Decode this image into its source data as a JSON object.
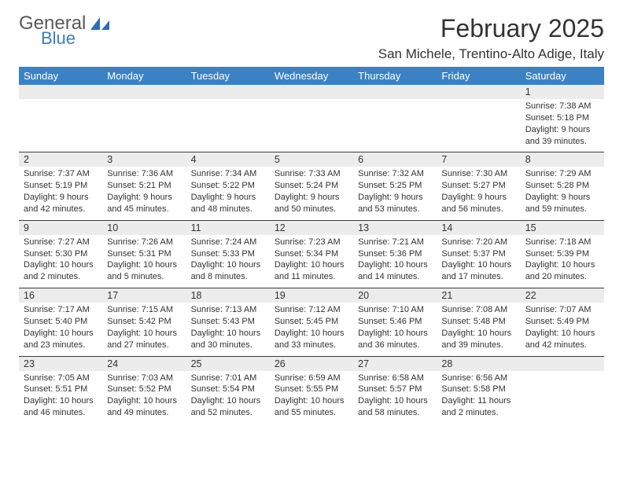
{
  "logo": {
    "text1": "General",
    "text2": "Blue",
    "text1_color": "#5a5a5a",
    "text2_color": "#3b7fbf",
    "icon_fill": "#2f6db3"
  },
  "title": "February 2025",
  "location": "San Michele, Trentino-Alto Adige, Italy",
  "colors": {
    "header_bg": "#3b82c4",
    "header_text": "#ffffff",
    "daynum_bg": "#ececec",
    "sep_line": "#3b3b3b",
    "body_text": "#333333"
  },
  "day_headers": [
    "Sunday",
    "Monday",
    "Tuesday",
    "Wednesday",
    "Thursday",
    "Friday",
    "Saturday"
  ],
  "weeks": [
    [
      null,
      null,
      null,
      null,
      null,
      null,
      {
        "n": "1",
        "sunrise": "7:38 AM",
        "sunset": "5:18 PM",
        "daylight": "9 hours and 39 minutes."
      }
    ],
    [
      {
        "n": "2",
        "sunrise": "7:37 AM",
        "sunset": "5:19 PM",
        "daylight": "9 hours and 42 minutes."
      },
      {
        "n": "3",
        "sunrise": "7:36 AM",
        "sunset": "5:21 PM",
        "daylight": "9 hours and 45 minutes."
      },
      {
        "n": "4",
        "sunrise": "7:34 AM",
        "sunset": "5:22 PM",
        "daylight": "9 hours and 48 minutes."
      },
      {
        "n": "5",
        "sunrise": "7:33 AM",
        "sunset": "5:24 PM",
        "daylight": "9 hours and 50 minutes."
      },
      {
        "n": "6",
        "sunrise": "7:32 AM",
        "sunset": "5:25 PM",
        "daylight": "9 hours and 53 minutes."
      },
      {
        "n": "7",
        "sunrise": "7:30 AM",
        "sunset": "5:27 PM",
        "daylight": "9 hours and 56 minutes."
      },
      {
        "n": "8",
        "sunrise": "7:29 AM",
        "sunset": "5:28 PM",
        "daylight": "9 hours and 59 minutes."
      }
    ],
    [
      {
        "n": "9",
        "sunrise": "7:27 AM",
        "sunset": "5:30 PM",
        "daylight": "10 hours and 2 minutes."
      },
      {
        "n": "10",
        "sunrise": "7:26 AM",
        "sunset": "5:31 PM",
        "daylight": "10 hours and 5 minutes."
      },
      {
        "n": "11",
        "sunrise": "7:24 AM",
        "sunset": "5:33 PM",
        "daylight": "10 hours and 8 minutes."
      },
      {
        "n": "12",
        "sunrise": "7:23 AM",
        "sunset": "5:34 PM",
        "daylight": "10 hours and 11 minutes."
      },
      {
        "n": "13",
        "sunrise": "7:21 AM",
        "sunset": "5:36 PM",
        "daylight": "10 hours and 14 minutes."
      },
      {
        "n": "14",
        "sunrise": "7:20 AM",
        "sunset": "5:37 PM",
        "daylight": "10 hours and 17 minutes."
      },
      {
        "n": "15",
        "sunrise": "7:18 AM",
        "sunset": "5:39 PM",
        "daylight": "10 hours and 20 minutes."
      }
    ],
    [
      {
        "n": "16",
        "sunrise": "7:17 AM",
        "sunset": "5:40 PM",
        "daylight": "10 hours and 23 minutes."
      },
      {
        "n": "17",
        "sunrise": "7:15 AM",
        "sunset": "5:42 PM",
        "daylight": "10 hours and 27 minutes."
      },
      {
        "n": "18",
        "sunrise": "7:13 AM",
        "sunset": "5:43 PM",
        "daylight": "10 hours and 30 minutes."
      },
      {
        "n": "19",
        "sunrise": "7:12 AM",
        "sunset": "5:45 PM",
        "daylight": "10 hours and 33 minutes."
      },
      {
        "n": "20",
        "sunrise": "7:10 AM",
        "sunset": "5:46 PM",
        "daylight": "10 hours and 36 minutes."
      },
      {
        "n": "21",
        "sunrise": "7:08 AM",
        "sunset": "5:48 PM",
        "daylight": "10 hours and 39 minutes."
      },
      {
        "n": "22",
        "sunrise": "7:07 AM",
        "sunset": "5:49 PM",
        "daylight": "10 hours and 42 minutes."
      }
    ],
    [
      {
        "n": "23",
        "sunrise": "7:05 AM",
        "sunset": "5:51 PM",
        "daylight": "10 hours and 46 minutes."
      },
      {
        "n": "24",
        "sunrise": "7:03 AM",
        "sunset": "5:52 PM",
        "daylight": "10 hours and 49 minutes."
      },
      {
        "n": "25",
        "sunrise": "7:01 AM",
        "sunset": "5:54 PM",
        "daylight": "10 hours and 52 minutes."
      },
      {
        "n": "26",
        "sunrise": "6:59 AM",
        "sunset": "5:55 PM",
        "daylight": "10 hours and 55 minutes."
      },
      {
        "n": "27",
        "sunrise": "6:58 AM",
        "sunset": "5:57 PM",
        "daylight": "10 hours and 58 minutes."
      },
      {
        "n": "28",
        "sunrise": "6:56 AM",
        "sunset": "5:58 PM",
        "daylight": "11 hours and 2 minutes."
      },
      null
    ]
  ],
  "labels": {
    "sunrise": "Sunrise:",
    "sunset": "Sunset:",
    "daylight": "Daylight:"
  }
}
